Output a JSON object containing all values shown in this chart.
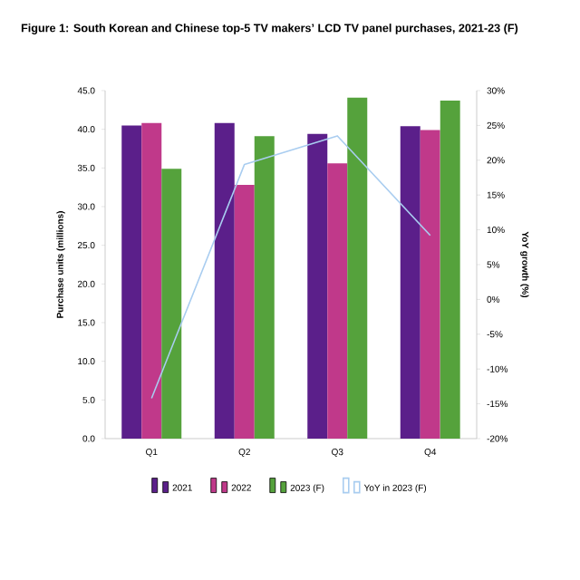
{
  "chart_data": {
    "type": "bar",
    "title": "Figure 1: South Korean and Chinese top-5 TV makers’ LCD TV panel purchases, 2021-23 (F)",
    "categories": [
      "Q1",
      "Q2",
      "Q3",
      "Q4"
    ],
    "ylabel": "Purchase units (millions)",
    "y2label": "YoY growth (%)",
    "ylim": [
      0,
      45
    ],
    "yticks": [
      {
        "value": 0,
        "label": "0.0"
      },
      {
        "value": 5,
        "label": "5.0"
      },
      {
        "value": 10,
        "label": "10.0"
      },
      {
        "value": 15,
        "label": "15.0"
      },
      {
        "value": 20,
        "label": "20.0"
      },
      {
        "value": 25,
        "label": "25.0"
      },
      {
        "value": 30,
        "label": "30.0"
      },
      {
        "value": 35,
        "label": "35.0"
      },
      {
        "value": 40,
        "label": "40.0"
      },
      {
        "value": 45,
        "label": "45.0"
      }
    ],
    "y2lim": [
      -20,
      30
    ],
    "y2ticks": [
      {
        "value": -20,
        "label": "-20%"
      },
      {
        "value": -15,
        "label": "-15%"
      },
      {
        "value": -10,
        "label": "-10%"
      },
      {
        "value": -5,
        "label": "-5%"
      },
      {
        "value": 0,
        "label": "0%"
      },
      {
        "value": 5,
        "label": "5%"
      },
      {
        "value": 10,
        "label": "10%"
      },
      {
        "value": 15,
        "label": "15%"
      },
      {
        "value": 20,
        "label": "20%"
      },
      {
        "value": 25,
        "label": "25%"
      },
      {
        "value": 30,
        "label": "30%"
      }
    ],
    "legend": "bottom",
    "series": [
      {
        "name": "2021",
        "color": "#5b1f8a",
        "values": [
          40.5,
          40.8,
          39.4,
          40.4
        ]
      },
      {
        "name": "2022",
        "color": "#c0398a",
        "values": [
          40.8,
          32.8,
          35.6,
          39.9
        ]
      },
      {
        "name": "2023 (F)",
        "color": "#55a23c",
        "values": [
          34.9,
          39.1,
          44.1,
          43.7
        ]
      },
      {
        "name": "YoY in 2023 (F)",
        "color": "#a9cdf0",
        "type": "line",
        "axis": "y2",
        "values": [
          -14.2,
          19.4,
          23.5,
          9.2
        ]
      }
    ]
  }
}
